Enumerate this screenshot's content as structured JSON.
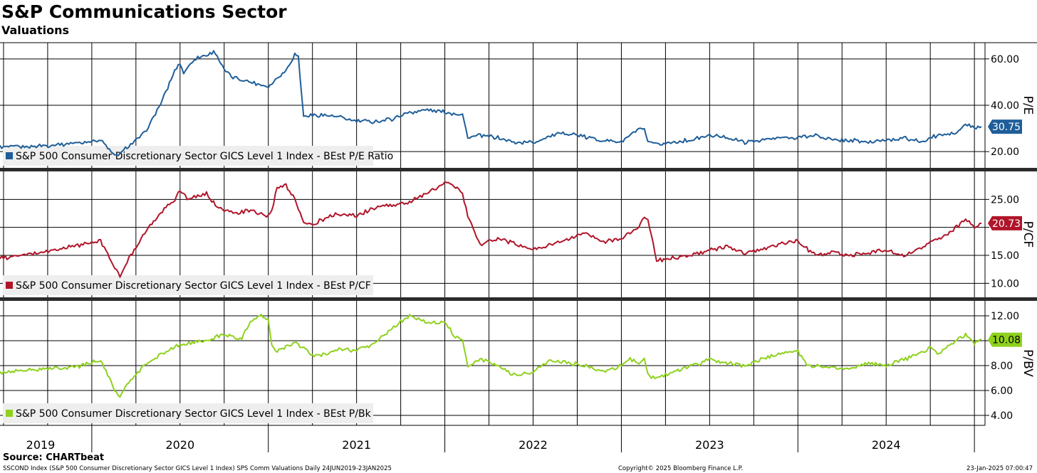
{
  "header": {
    "title": "S&P Communications Sector",
    "subtitle": "Valuations"
  },
  "footer": {
    "source": "Source: CHARTbeat",
    "description": "SSCOND Index (S&P 500 Consumer Discretionary Sector GICS Level 1 Index) SPS Comm Valuations  Daily 24JUN2019-23JAN2025",
    "copyright": "Copyright© 2025 Bloomberg Finance L.P.",
    "date": "23-Jan-2025 07:00:47"
  },
  "colors": {
    "pe": "#1f5e99",
    "pcf": "#b0152a",
    "pbv": "#8fd11d"
  },
  "chart_data": {
    "type": "line",
    "x_range": [
      2019.48,
      2025.06
    ],
    "year_labels": [
      "2019",
      "2020",
      "2021",
      "2022",
      "2023",
      "2024"
    ],
    "panels": [
      {
        "id": "pe",
        "axis_label": "P/E",
        "legend": "S&P 500 Consumer Discretionary Sector GICS Level 1 Index - BEst P/E Ratio",
        "ylim": [
          13,
          67
        ],
        "ticks": [
          20,
          40,
          60
        ],
        "tick_labels": [
          "20.00",
          "40.00",
          "60.00"
        ],
        "last_value_label": "30.75",
        "series": {
          "x": [
            2019.48,
            2019.6,
            2019.8,
            2019.95,
            2020.05,
            2020.13,
            2020.16,
            2020.2,
            2020.3,
            2020.4,
            2020.47,
            2020.5,
            2020.52,
            2020.58,
            2020.7,
            2020.75,
            2020.8,
            2020.9,
            2021.0,
            2021.05,
            2021.1,
            2021.15,
            2021.17,
            2021.2,
            2021.3,
            2021.4,
            2021.5,
            2021.6,
            2021.7,
            2021.8,
            2021.9,
            2022.0,
            2022.1,
            2022.13,
            2022.2,
            2022.3,
            2022.4,
            2022.5,
            2022.6,
            2022.7,
            2022.8,
            2022.9,
            2023.0,
            2023.05,
            2023.1,
            2023.13,
            2023.15,
            2023.2,
            2023.3,
            2023.4,
            2023.5,
            2023.6,
            2023.7,
            2023.8,
            2023.9,
            2024.0,
            2024.1,
            2024.2,
            2024.3,
            2024.4,
            2024.5,
            2024.6,
            2024.7,
            2024.75,
            2024.8,
            2024.9,
            2024.95,
            2025.0,
            2025.04
          ],
          "values": [
            22,
            22,
            23,
            24,
            25,
            18,
            19,
            22,
            28,
            42,
            55,
            58,
            54,
            60,
            63,
            55,
            52,
            50,
            48,
            52,
            55,
            62,
            61,
            35,
            36,
            35,
            33,
            33,
            34,
            37,
            38,
            37,
            36,
            26,
            27,
            26,
            24,
            24,
            27,
            28,
            26,
            25,
            24,
            27,
            30,
            29,
            24,
            23,
            24,
            25,
            27,
            26,
            24,
            25,
            26,
            26,
            27,
            25,
            25,
            24,
            25,
            26,
            24,
            26,
            27,
            28,
            32,
            30,
            30.75
          ]
        }
      },
      {
        "id": "pcf",
        "axis_label": "P/CF",
        "legend": "S&P 500 Consumer Discretionary Sector GICS Level 1 Index - BEst P/CF",
        "ylim": [
          7.5,
          30
        ],
        "ticks": [
          10,
          15,
          20,
          25
        ],
        "tick_labels": [
          "10.00",
          "15.00",
          "",
          "25.00"
        ],
        "last_value_label": "20.73",
        "series": {
          "x": [
            2019.48,
            2019.6,
            2019.8,
            2019.95,
            2020.05,
            2020.13,
            2020.16,
            2020.2,
            2020.3,
            2020.4,
            2020.47,
            2020.5,
            2020.55,
            2020.65,
            2020.7,
            2020.8,
            2020.9,
            2021.0,
            2021.02,
            2021.05,
            2021.1,
            2021.15,
            2021.2,
            2021.25,
            2021.35,
            2021.4,
            2021.5,
            2021.6,
            2021.7,
            2021.8,
            2021.9,
            2022.0,
            2022.05,
            2022.1,
            2022.13,
            2022.2,
            2022.3,
            2022.4,
            2022.5,
            2022.6,
            2022.7,
            2022.8,
            2022.9,
            2023.0,
            2023.05,
            2023.1,
            2023.13,
            2023.15,
            2023.2,
            2023.3,
            2023.4,
            2023.5,
            2023.6,
            2023.7,
            2023.8,
            2023.9,
            2024.0,
            2024.1,
            2024.2,
            2024.3,
            2024.4,
            2024.5,
            2024.6,
            2024.7,
            2024.75,
            2024.8,
            2024.9,
            2024.95,
            2025.0,
            2025.04
          ],
          "values": [
            14.5,
            15,
            16,
            17,
            17.5,
            13,
            11,
            14,
            19,
            23,
            25,
            26.5,
            25,
            26,
            24,
            22.5,
            23,
            22,
            23,
            27,
            27.5,
            25,
            21,
            20.5,
            22,
            22.5,
            22,
            23.5,
            24,
            24.5,
            26,
            28,
            27.5,
            26,
            22,
            17,
            18,
            17,
            16,
            17,
            18,
            19,
            17.5,
            18,
            19,
            20,
            22,
            21.5,
            14,
            14.5,
            15,
            16,
            16.5,
            15.5,
            16,
            17,
            17.5,
            15,
            15.5,
            15,
            15.5,
            16,
            15,
            16.5,
            17.5,
            18,
            20,
            21.5,
            20,
            20.73
          ]
        }
      },
      {
        "id": "pbv",
        "axis_label": "P/BV",
        "legend": "S&P 500 Consumer Discretionary Sector GICS Level 1 Index - BEst P/Bk",
        "ylim": [
          3.2,
          13.2
        ],
        "ticks": [
          4,
          6,
          8,
          10,
          12
        ],
        "tick_labels": [
          "4.00",
          "6.00",
          "8.00",
          "",
          "12.00"
        ],
        "last_value_label": "10.08",
        "series": {
          "x": [
            2019.48,
            2019.6,
            2019.8,
            2019.95,
            2020.05,
            2020.13,
            2020.16,
            2020.2,
            2020.3,
            2020.4,
            2020.47,
            2020.55,
            2020.65,
            2020.75,
            2020.85,
            2020.9,
            2020.95,
            2021.0,
            2021.02,
            2021.05,
            2021.1,
            2021.15,
            2021.2,
            2021.25,
            2021.35,
            2021.4,
            2021.5,
            2021.6,
            2021.7,
            2021.8,
            2021.9,
            2022.0,
            2022.05,
            2022.1,
            2022.13,
            2022.2,
            2022.3,
            2022.4,
            2022.5,
            2022.6,
            2022.7,
            2022.8,
            2022.9,
            2023.0,
            2023.05,
            2023.1,
            2023.13,
            2023.15,
            2023.2,
            2023.3,
            2023.4,
            2023.5,
            2023.6,
            2023.7,
            2023.8,
            2023.9,
            2024.0,
            2024.05,
            2024.1,
            2024.2,
            2024.3,
            2024.4,
            2024.5,
            2024.6,
            2024.7,
            2024.75,
            2024.8,
            2024.9,
            2024.95,
            2025.0,
            2025.04
          ],
          "values": [
            7.4,
            7.6,
            7.8,
            8.0,
            8.5,
            6.0,
            5.5,
            6.5,
            8.0,
            9.0,
            9.5,
            9.8,
            10.0,
            10.5,
            10.2,
            11.5,
            12.0,
            11.8,
            9.5,
            9.2,
            9.5,
            9.8,
            9.5,
            8.8,
            9.0,
            9.3,
            9.2,
            9.8,
            11.0,
            12.0,
            11.5,
            11.5,
            10.5,
            10.0,
            8.0,
            8.5,
            8.0,
            7.2,
            7.5,
            8.5,
            8.2,
            8.0,
            7.5,
            8.0,
            8.5,
            8.2,
            8.5,
            7.2,
            7.0,
            7.5,
            8.0,
            8.5,
            8.2,
            8.0,
            8.5,
            9.0,
            9.2,
            8.0,
            8.0,
            7.8,
            7.8,
            8.2,
            8.0,
            8.5,
            9.0,
            9.5,
            9.0,
            10.0,
            10.5,
            9.8,
            10.08
          ]
        }
      }
    ]
  }
}
